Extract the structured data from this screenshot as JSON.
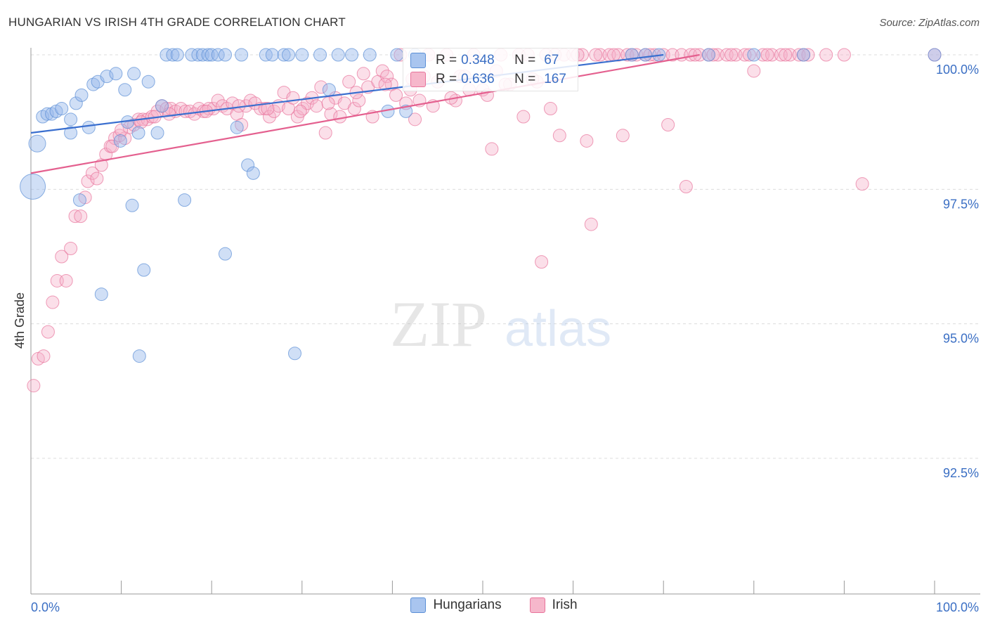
{
  "header": {
    "title": "HUNGARIAN VS IRISH 4TH GRADE CORRELATION CHART",
    "source": "Source: ZipAtlas.com"
  },
  "stats": [
    {
      "series": "Hungarians",
      "r_label": "R =",
      "r_value": "0.348",
      "n_label": "N =",
      "n_value": "67",
      "color": "#5b8fd6"
    },
    {
      "series": "Irish",
      "r_label": "R =",
      "r_value": "0.636",
      "n_label": "N =",
      "n_value": "167",
      "color": "#e8739b"
    }
  ],
  "watermark": {
    "zip": "ZIP",
    "atlas": "atlas"
  },
  "chart_data": {
    "type": "scatter",
    "title": "HUNGARIAN VS IRISH 4TH GRADE CORRELATION CHART",
    "xlabel": "",
    "ylabel": "4th Grade",
    "xlim": [
      0,
      100
    ],
    "ylim": [
      90.2,
      100.4
    ],
    "x_tick_labels": [
      "0.0%",
      "100.0%"
    ],
    "y_ticks": [
      92.5,
      95.0,
      97.5,
      100.0
    ],
    "y_tick_labels": [
      "92.5%",
      "95.0%",
      "97.5%",
      "100.0%"
    ],
    "grid": true,
    "legend_position": "bottom",
    "series": [
      {
        "name": "Hungarians",
        "color": "#5b8fd6",
        "trend": [
          [
            0,
            98.55
          ],
          [
            70,
            100.0
          ]
        ],
        "points": [
          [
            0.2,
            97.55,
            18
          ],
          [
            0.7,
            98.35,
            12
          ],
          [
            1.3,
            98.85,
            9
          ],
          [
            1.8,
            98.9,
            9
          ],
          [
            2.3,
            98.9,
            9
          ],
          [
            2.8,
            98.95,
            9
          ],
          [
            3.4,
            99.0,
            9
          ],
          [
            4.4,
            98.55,
            9
          ],
          [
            4.4,
            98.8,
            9
          ],
          [
            5.0,
            99.1,
            9
          ],
          [
            5.6,
            99.25,
            9
          ],
          [
            6.4,
            98.65,
            9
          ],
          [
            6.9,
            99.45,
            9
          ],
          [
            7.4,
            99.5,
            9
          ],
          [
            8.4,
            99.6,
            9
          ],
          [
            9.4,
            99.65,
            9
          ],
          [
            9.9,
            98.4,
            9
          ],
          [
            10.4,
            99.35,
            9
          ],
          [
            10.7,
            98.75,
            9
          ],
          [
            11.2,
            97.2,
            9
          ],
          [
            11.4,
            99.65,
            9
          ],
          [
            11.9,
            98.55,
            9
          ],
          [
            12.5,
            96.0,
            9
          ],
          [
            13.0,
            99.5,
            9
          ],
          [
            14.0,
            98.55,
            9
          ],
          [
            14.5,
            99.05,
            9
          ],
          [
            15.0,
            100.0,
            9
          ],
          [
            15.7,
            100.0,
            9
          ],
          [
            16.2,
            100.0,
            9
          ],
          [
            17.0,
            97.3,
            9
          ],
          [
            17.8,
            100.0,
            9
          ],
          [
            18.5,
            100.0,
            9
          ],
          [
            19.0,
            100.0,
            9
          ],
          [
            19.6,
            100.0,
            9
          ],
          [
            20.0,
            100.0,
            9
          ],
          [
            20.7,
            100.0,
            9
          ],
          [
            21.5,
            100.0,
            9
          ],
          [
            21.5,
            96.3,
            9
          ],
          [
            22.8,
            98.65,
            9
          ],
          [
            23.3,
            100.0,
            9
          ],
          [
            24.0,
            97.95,
            9
          ],
          [
            24.6,
            97.8,
            9
          ],
          [
            26.0,
            100.0,
            9
          ],
          [
            26.7,
            100.0,
            9
          ],
          [
            28.0,
            100.0,
            9
          ],
          [
            28.5,
            100.0,
            9
          ],
          [
            29.2,
            94.45,
            9
          ],
          [
            30.0,
            100.0,
            9
          ],
          [
            32.0,
            100.0,
            9
          ],
          [
            33.0,
            99.35,
            9
          ],
          [
            34.0,
            100.0,
            9
          ],
          [
            35.5,
            100.0,
            9
          ],
          [
            37.5,
            100.0,
            9
          ],
          [
            39.5,
            98.95,
            9
          ],
          [
            40.5,
            100.0,
            9
          ],
          [
            41.5,
            98.95,
            9
          ],
          [
            7.8,
            95.55,
            9
          ],
          [
            12.0,
            94.4,
            9
          ],
          [
            5.4,
            97.3,
            9
          ],
          [
            66.5,
            100.0,
            9
          ],
          [
            68.0,
            100.0,
            9
          ],
          [
            69.5,
            100.0,
            9
          ],
          [
            75.0,
            100.0,
            9
          ],
          [
            80.0,
            100.0,
            9
          ],
          [
            85.5,
            100.0,
            9
          ],
          [
            100.0,
            100.0,
            9
          ],
          [
            42.5,
            100.0,
            9
          ]
        ]
      },
      {
        "name": "Irish",
        "color": "#e8739b",
        "trend": [
          [
            0,
            97.8
          ],
          [
            74,
            100.0
          ]
        ],
        "points": [
          [
            0.3,
            93.85,
            9
          ],
          [
            0.8,
            94.35,
            9
          ],
          [
            1.4,
            94.4,
            9
          ],
          [
            1.9,
            94.85,
            9
          ],
          [
            2.4,
            95.4,
            9
          ],
          [
            2.9,
            95.8,
            9
          ],
          [
            3.4,
            96.25,
            9
          ],
          [
            3.9,
            95.8,
            9
          ],
          [
            4.4,
            96.4,
            9
          ],
          [
            4.9,
            97.0,
            9
          ],
          [
            5.5,
            97.0,
            9
          ],
          [
            6.0,
            97.35,
            9
          ],
          [
            6.3,
            97.65,
            9
          ],
          [
            6.8,
            97.8,
            9
          ],
          [
            7.3,
            97.7,
            9
          ],
          [
            7.8,
            97.95,
            9
          ],
          [
            8.3,
            98.15,
            9
          ],
          [
            8.8,
            98.3,
            9
          ],
          [
            9.3,
            98.45,
            9
          ],
          [
            9.8,
            98.5,
            9
          ],
          [
            10.4,
            98.45,
            9
          ],
          [
            10.9,
            98.65,
            9
          ],
          [
            11.4,
            98.7,
            9
          ],
          [
            11.9,
            98.8,
            9
          ],
          [
            12.4,
            98.8,
            9
          ],
          [
            12.9,
            98.8,
            9
          ],
          [
            13.4,
            98.85,
            9
          ],
          [
            14.0,
            98.95,
            9
          ],
          [
            14.5,
            99.05,
            9
          ],
          [
            15.0,
            99.0,
            9
          ],
          [
            15.5,
            99.0,
            9
          ],
          [
            16.0,
            98.95,
            9
          ],
          [
            16.6,
            99.0,
            9
          ],
          [
            17.1,
            98.95,
            9
          ],
          [
            17.6,
            98.95,
            9
          ],
          [
            18.1,
            98.9,
            9
          ],
          [
            18.6,
            99.0,
            9
          ],
          [
            19.1,
            98.95,
            9
          ],
          [
            19.7,
            99.0,
            9
          ],
          [
            20.2,
            99.0,
            9
          ],
          [
            20.7,
            99.15,
            9
          ],
          [
            21.2,
            99.05,
            9
          ],
          [
            21.7,
            99.0,
            9
          ],
          [
            22.3,
            99.1,
            9
          ],
          [
            22.8,
            98.9,
            9
          ],
          [
            23.3,
            98.7,
            9
          ],
          [
            23.8,
            99.05,
            9
          ],
          [
            24.3,
            99.15,
            9
          ],
          [
            24.8,
            99.1,
            9
          ],
          [
            25.4,
            99.0,
            9
          ],
          [
            25.9,
            99.0,
            9
          ],
          [
            26.4,
            98.85,
            9
          ],
          [
            26.9,
            98.95,
            9
          ],
          [
            27.4,
            99.05,
            9
          ],
          [
            28.0,
            99.3,
            9
          ],
          [
            28.5,
            99.0,
            9
          ],
          [
            29.0,
            99.2,
            9
          ],
          [
            29.5,
            98.85,
            9
          ],
          [
            30.1,
            99.0,
            9
          ],
          [
            30.6,
            99.1,
            9
          ],
          [
            31.1,
            99.2,
            9
          ],
          [
            31.6,
            99.05,
            9
          ],
          [
            32.1,
            99.4,
            9
          ],
          [
            32.6,
            98.55,
            9
          ],
          [
            33.2,
            98.9,
            9
          ],
          [
            33.7,
            99.2,
            9
          ],
          [
            34.2,
            98.85,
            9
          ],
          [
            34.7,
            99.1,
            9
          ],
          [
            35.2,
            99.5,
            9
          ],
          [
            35.8,
            99.0,
            9
          ],
          [
            36.3,
            99.15,
            9
          ],
          [
            36.8,
            99.65,
            9
          ],
          [
            37.3,
            99.4,
            9
          ],
          [
            37.8,
            98.85,
            9
          ],
          [
            38.4,
            99.5,
            9
          ],
          [
            38.9,
            99.7,
            9
          ],
          [
            39.4,
            99.6,
            9
          ],
          [
            39.9,
            99.45,
            9
          ],
          [
            40.4,
            99.25,
            9
          ],
          [
            40.9,
            100.0,
            9
          ],
          [
            41.5,
            99.1,
            9
          ],
          [
            42.0,
            99.35,
            9
          ],
          [
            42.5,
            98.8,
            9
          ],
          [
            43.0,
            99.15,
            9
          ],
          [
            43.5,
            99.6,
            9
          ],
          [
            44.0,
            100.0,
            9
          ],
          [
            45.0,
            99.5,
            9
          ],
          [
            46.0,
            100.0,
            9
          ],
          [
            47.0,
            99.15,
            9
          ],
          [
            48.0,
            99.6,
            9
          ],
          [
            49.0,
            100.0,
            9
          ],
          [
            50.0,
            99.35,
            9
          ],
          [
            50.5,
            99.25,
            9
          ],
          [
            51.0,
            98.25,
            9
          ],
          [
            52.0,
            100.0,
            9
          ],
          [
            53.0,
            99.45,
            9
          ],
          [
            54.0,
            100.0,
            9
          ],
          [
            54.5,
            98.85,
            9
          ],
          [
            55.0,
            100.0,
            9
          ],
          [
            56.0,
            99.5,
            9
          ],
          [
            57.0,
            100.0,
            9
          ],
          [
            57.5,
            99.0,
            9
          ],
          [
            58.0,
            100.0,
            9
          ],
          [
            59.0,
            100.0,
            9
          ],
          [
            60.0,
            100.0,
            9
          ],
          [
            61.0,
            100.0,
            9
          ],
          [
            56.5,
            96.15,
            9
          ],
          [
            58.5,
            98.5,
            9
          ],
          [
            60.5,
            100.0,
            9
          ],
          [
            61.5,
            98.4,
            9
          ],
          [
            62.0,
            96.85,
            9
          ],
          [
            63.0,
            100.0,
            9
          ],
          [
            64.0,
            100.0,
            9
          ],
          [
            65.0,
            100.0,
            9
          ],
          [
            65.5,
            98.5,
            9
          ],
          [
            66.0,
            100.0,
            9
          ],
          [
            67.0,
            100.0,
            9
          ],
          [
            68.0,
            100.0,
            9
          ],
          [
            69.0,
            100.0,
            9
          ],
          [
            70.0,
            100.0,
            9
          ],
          [
            70.5,
            98.7,
            9
          ],
          [
            71.0,
            100.0,
            9
          ],
          [
            72.0,
            100.0,
            9
          ],
          [
            72.5,
            97.55,
            9
          ],
          [
            73.0,
            100.0,
            9
          ],
          [
            74.0,
            100.0,
            9
          ],
          [
            75.0,
            100.0,
            9
          ],
          [
            76.0,
            100.0,
            9
          ],
          [
            77.0,
            100.0,
            9
          ],
          [
            78.0,
            100.0,
            9
          ],
          [
            79.0,
            100.0,
            9
          ],
          [
            80.0,
            99.7,
            9
          ],
          [
            81.0,
            100.0,
            9
          ],
          [
            82.0,
            100.0,
            9
          ],
          [
            83.0,
            100.0,
            9
          ],
          [
            84.0,
            100.0,
            9
          ],
          [
            85.0,
            100.0,
            9
          ],
          [
            86.0,
            100.0,
            9
          ],
          [
            88.0,
            100.0,
            9
          ],
          [
            90.0,
            100.0,
            9
          ],
          [
            92.0,
            97.6,
            9
          ],
          [
            100.0,
            100.0,
            9
          ],
          [
            62.5,
            100.0,
            9
          ],
          [
            64.5,
            100.0,
            9
          ],
          [
            66.5,
            100.0,
            9
          ],
          [
            68.5,
            100.0,
            9
          ],
          [
            73.5,
            100.0,
            9
          ],
          [
            75.5,
            100.0,
            9
          ],
          [
            77.5,
            100.0,
            9
          ],
          [
            79.5,
            100.0,
            9
          ],
          [
            81.5,
            100.0,
            9
          ],
          [
            83.5,
            100.0,
            9
          ],
          [
            85.5,
            100.0,
            9
          ],
          [
            44.5,
            99.05,
            9
          ],
          [
            46.5,
            99.2,
            9
          ],
          [
            48.5,
            99.35,
            9
          ],
          [
            52.5,
            99.45,
            9
          ],
          [
            55.5,
            99.55,
            9
          ],
          [
            12.2,
            98.75,
            9
          ],
          [
            9.0,
            98.3,
            9
          ],
          [
            10.0,
            98.6,
            9
          ],
          [
            13.7,
            98.85,
            9
          ],
          [
            15.3,
            98.9,
            9
          ],
          [
            19.4,
            98.95,
            9
          ],
          [
            23.0,
            99.05,
            9
          ],
          [
            26.2,
            99.0,
            9
          ],
          [
            29.8,
            98.95,
            9
          ],
          [
            32.9,
            99.1,
            9
          ],
          [
            36.0,
            99.3,
            9
          ],
          [
            39.2,
            99.45,
            9
          ],
          [
            42.2,
            99.55,
            9
          ],
          [
            47.5,
            99.6,
            9
          ],
          [
            51.5,
            99.7,
            9
          ]
        ]
      }
    ]
  }
}
